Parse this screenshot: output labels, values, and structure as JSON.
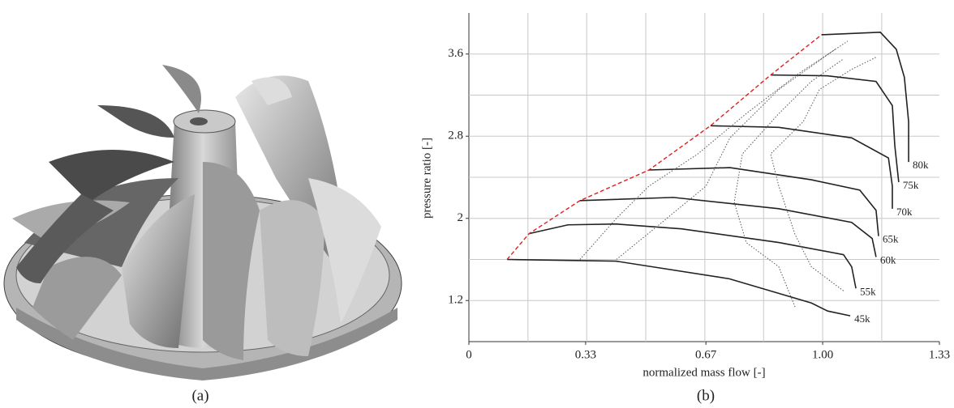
{
  "chart_data": {
    "type": "line",
    "xlabel": "normalized mass flow [-]",
    "ylabel": "pressure ratio [-]",
    "xlim": [
      0,
      1.33
    ],
    "ylim": [
      0.8,
      4.0
    ],
    "xticks": [
      0,
      0.33,
      0.67,
      {
        "value": 1,
        "label": "1.00"
      },
      1.33
    ],
    "yticks": [
      1.2,
      2.0,
      2.8,
      3.6
    ],
    "xgrid": [
      0.167,
      0.333,
      0.5,
      0.667,
      0.833,
      1.0,
      1.167
    ],
    "ygrid": [
      1.2,
      1.6,
      2.0,
      2.4,
      2.8,
      3.2,
      3.6
    ],
    "grid": true,
    "series": [
      {
        "name": "45k",
        "color": "#222222",
        "style": "solid",
        "x": [
          0.108,
          0.415,
          0.736,
          0.968,
          1.014,
          1.078
        ],
        "values": [
          1.6,
          1.584,
          1.412,
          1.176,
          1.098,
          1.051
        ]
      },
      {
        "name": "55k",
        "color": "#222222",
        "style": "solid",
        "x": [
          0.17,
          0.28,
          0.417,
          0.601,
          0.876,
          1.059,
          1.082,
          1.094
        ],
        "values": [
          1.851,
          1.937,
          1.945,
          1.898,
          1.765,
          1.647,
          1.529,
          1.318
        ]
      },
      {
        "name": "60k",
        "color": "#222222",
        "style": "solid",
        "x": [
          0.314,
          0.578,
          0.876,
          1.082,
          1.14,
          1.151
        ],
        "values": [
          2.173,
          2.204,
          2.094,
          1.961,
          1.804,
          1.624
        ]
      },
      {
        "name": "65k",
        "color": "#222222",
        "style": "solid",
        "x": [
          0.509,
          0.738,
          0.968,
          1.105,
          1.151,
          1.158
        ],
        "values": [
          2.471,
          2.494,
          2.376,
          2.275,
          2.078,
          1.827
        ]
      },
      {
        "name": "70k",
        "color": "#222222",
        "style": "solid",
        "x": [
          0.683,
          0.876,
          1.082,
          1.186,
          1.197,
          1.197
        ],
        "values": [
          2.902,
          2.886,
          2.784,
          2.588,
          2.314,
          2.094
        ]
      },
      {
        "name": "75k",
        "color": "#222222",
        "style": "solid",
        "x": [
          0.853,
          1.014,
          1.151,
          1.197,
          1.204,
          1.215
        ],
        "values": [
          3.396,
          3.388,
          3.333,
          3.098,
          2.706,
          2.353
        ]
      },
      {
        "name": "80k",
        "color": "#222222",
        "style": "solid",
        "x": [
          0.997,
          1.163,
          1.208,
          1.231,
          1.243,
          1.243
        ],
        "values": [
          3.788,
          3.812,
          3.647,
          3.373,
          2.941,
          2.549
        ]
      },
      {
        "color": "#e02020",
        "style": "dashed",
        "x": [
          0.108,
          0.17,
          0.314,
          0.509,
          0.683,
          0.853,
          0.997
        ],
        "values": [
          1.6,
          1.851,
          2.173,
          2.471,
          2.902,
          3.396,
          3.788
        ]
      },
      {
        "color": "#555555",
        "style": "dotted",
        "x": [
          0.314,
          0.417,
          0.509,
          0.647,
          0.784,
          0.933,
          1.071
        ],
        "values": [
          1.6,
          2.0,
          2.314,
          2.627,
          3.02,
          3.412,
          3.726
        ]
      },
      {
        "color": "#555555",
        "style": "dotted",
        "x": [
          0.417,
          0.532,
          0.67,
          0.738,
          0.876,
          1.036
        ],
        "values": [
          1.6,
          1.922,
          2.314,
          2.784,
          3.255,
          3.647
        ]
      },
      {
        "color": "#555555",
        "style": "dotted",
        "x": [
          0.922,
          0.876,
          0.784,
          0.75,
          0.773,
          0.876,
          0.968,
          1.059
        ],
        "values": [
          1.137,
          1.529,
          1.765,
          2.157,
          2.627,
          3.02,
          3.333,
          3.553
        ]
      },
      {
        "color": "#555555",
        "style": "dotted",
        "x": [
          1.059,
          0.968,
          0.922,
          0.876,
          0.853,
          0.945,
          0.991,
          1.082,
          1.151
        ],
        "values": [
          1.294,
          1.529,
          1.843,
          2.314,
          2.627,
          2.941,
          3.255,
          3.451,
          3.569
        ]
      }
    ]
  },
  "figure": {
    "captions": [
      "(a)",
      "(b)"
    ]
  }
}
